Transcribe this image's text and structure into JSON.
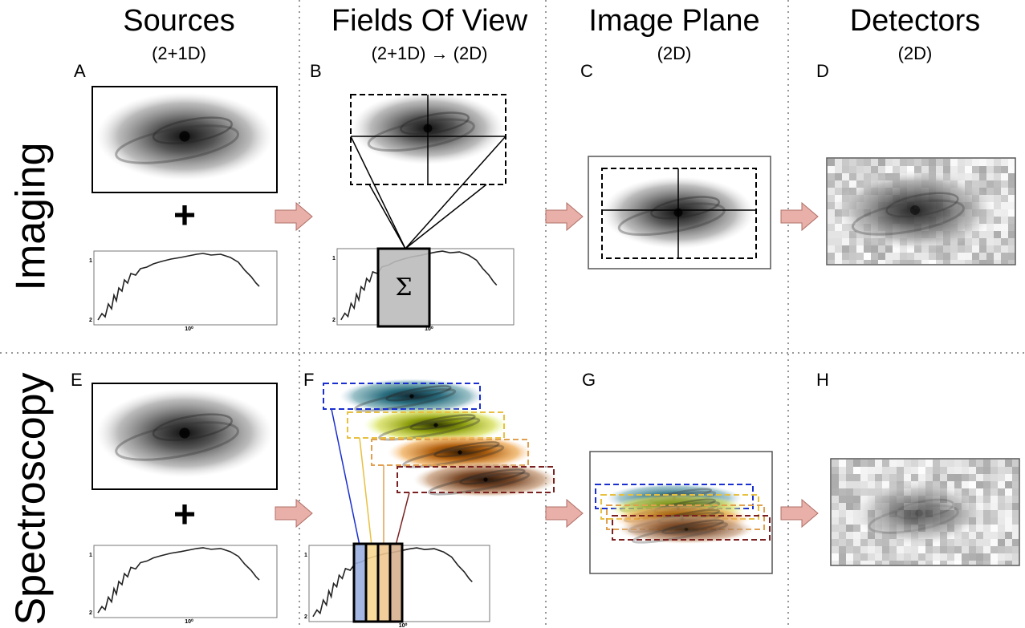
{
  "columns": [
    {
      "title": "Sources",
      "subtitle": "(2+1D)"
    },
    {
      "title": "Fields Of View",
      "subtitle": "(2+1D) → (2D)"
    },
    {
      "title": "Image Plane",
      "subtitle": "(2D)"
    },
    {
      "title": "Detectors",
      "subtitle": "(2D)"
    }
  ],
  "rows": [
    {
      "label": "Imaging"
    },
    {
      "label": "Spectroscopy"
    }
  ],
  "panels": [
    "A",
    "B",
    "C",
    "D",
    "E",
    "F",
    "G",
    "H"
  ],
  "plus": "+",
  "sum": "Σ",
  "spectrum_ticks": {
    "y_top": "1",
    "y_bottom": "2",
    "x": "10⁰"
  }
}
